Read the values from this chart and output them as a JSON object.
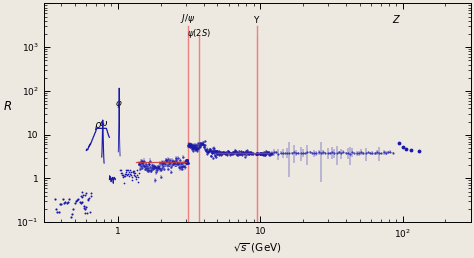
{
  "xlabel": "$\\sqrt{s}$ (GeV)",
  "ylabel": "$R$",
  "xlim": [
    0.3,
    300
  ],
  "ylim": [
    0.1,
    10000.0
  ],
  "background_color": "#ede8e0",
  "resonance_color": "#f08080",
  "data_color": "#1a1aaa",
  "theory_line_color": "#a08848",
  "red_line_color": "#cc3333",
  "cyan_line_color": "#00bbbb"
}
